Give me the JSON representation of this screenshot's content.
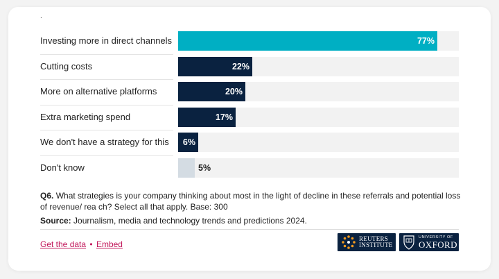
{
  "chart_data": {
    "type": "bar",
    "orientation": "horizontal",
    "categories": [
      "Investing more in direct channels",
      "Cutting costs",
      "More on alternative platforms",
      "Extra marketing spend",
      "We don't have a strategy for this",
      "Don't know"
    ],
    "values": [
      77,
      22,
      20,
      17,
      6,
      5
    ],
    "value_labels": [
      "77%",
      "22%",
      "20%",
      "17%",
      "6%",
      "5%"
    ],
    "xlim": [
      0,
      100
    ],
    "unit": "%",
    "colors": [
      "#00afc3",
      "#0a2240",
      "#0a2240",
      "#0a2240",
      "#0a2240",
      "#d4dce3"
    ],
    "track_color": "#f2f2f2",
    "top_mark": "."
  },
  "footer": {
    "question_label": "Q6.",
    "question_text": "What strategies is your company thinking about most in the light of decline in these referrals and potential loss of revenue/ rea ch? Select all that apply. Base: 300",
    "source_label": "Source:",
    "source_text": "Journalism, media and technology trends and predictions 2024.",
    "get_data": "Get the data",
    "separator": "•",
    "embed": "Embed"
  },
  "logos": {
    "reuters_line1": "REUTERS",
    "reuters_line2": "INSTITUTE",
    "oxford_line1": "UNIVERSITY OF",
    "oxford_line2": "OXFORD"
  }
}
